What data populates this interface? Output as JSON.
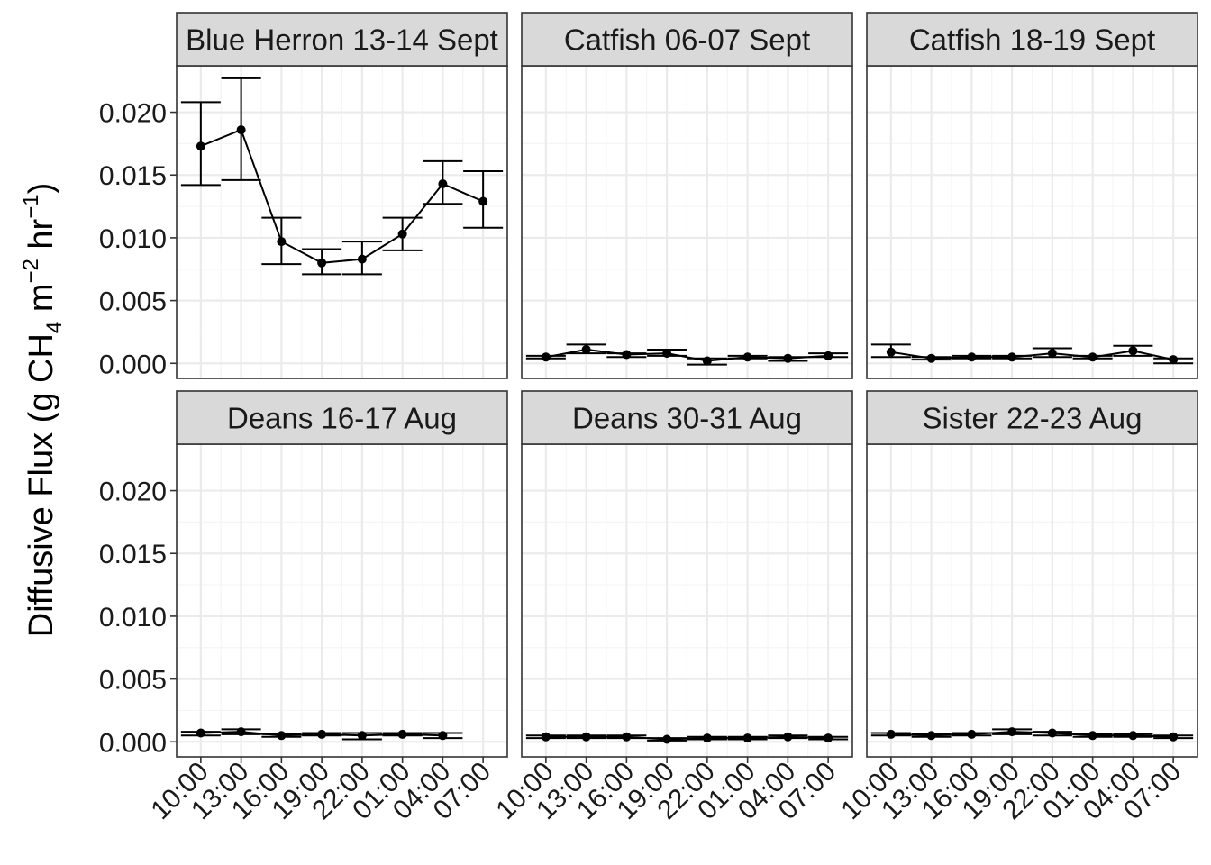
{
  "chart_data": {
    "type": "line",
    "facets": [
      "Blue Herron 13-14 Sept",
      "Catfish 06-07 Sept",
      "Catfish 18-19 Sept",
      "Deans 16-17 Aug",
      "Deans 30-31 Aug",
      "Sister 22-23 Aug"
    ],
    "ylabel": {
      "prefix": "Diffusive Flux (g CH",
      "sub": "4",
      "mid": " m",
      "sup1": "−2",
      "mid2": " hr",
      "sup2": "−1",
      "suffix": ")"
    },
    "xlabel": "",
    "categories": [
      "10:00",
      "13:00",
      "16:00",
      "19:00",
      "22:00",
      "01:00",
      "04:00",
      "07:00"
    ],
    "yticks": [
      "0.000",
      "0.005",
      "0.010",
      "0.015",
      "0.020"
    ],
    "ytick_values": [
      0,
      0.005,
      0.01,
      0.015,
      0.02
    ],
    "ylim": [
      -0.0012,
      0.0237
    ],
    "grid": true,
    "series": [
      {
        "panel": "Blue Herron 13-14 Sept",
        "values": [
          0.0173,
          0.0186,
          0.0097,
          0.008,
          0.0083,
          0.0103,
          0.0143,
          0.0129
        ],
        "lower": [
          0.0142,
          0.0146,
          0.0079,
          0.0071,
          0.0071,
          0.009,
          0.0127,
          0.0108
        ],
        "upper": [
          0.0208,
          0.0227,
          0.0116,
          0.0091,
          0.0097,
          0.0116,
          0.0161,
          0.0153
        ]
      },
      {
        "panel": "Catfish 06-07 Sept",
        "values": [
          0.0005,
          0.0011,
          0.0007,
          0.0008,
          0.0002,
          0.0005,
          0.0004,
          0.0006
        ],
        "lower": [
          0.0004,
          0.0008,
          0.0005,
          0.0006,
          -0.0001,
          0.0004,
          0.0002,
          0.0005
        ],
        "upper": [
          0.0006,
          0.0015,
          0.0008,
          0.0011,
          0.0004,
          0.0006,
          0.0005,
          0.0008
        ]
      },
      {
        "panel": "Catfish 18-19 Sept",
        "values": [
          0.0009,
          0.0004,
          0.0005,
          0.0005,
          0.0008,
          0.0005,
          0.001,
          0.0003
        ],
        "lower": [
          0.0005,
          0.0003,
          0.0004,
          0.0004,
          0.0005,
          0.0004,
          0.0006,
          0.0
        ],
        "upper": [
          0.0015,
          0.0005,
          0.0006,
          0.0006,
          0.0012,
          0.0006,
          0.0014,
          0.0004
        ]
      },
      {
        "panel": "Deans 16-17 Aug",
        "values": [
          0.0007,
          0.0008,
          0.0005,
          0.0006,
          0.0005,
          0.0006,
          0.0005,
          null
        ],
        "lower": [
          0.0005,
          0.0006,
          0.0004,
          0.0005,
          0.0002,
          0.0005,
          0.0003,
          null
        ],
        "upper": [
          0.0008,
          0.001,
          0.0006,
          0.0007,
          0.0007,
          0.0007,
          0.0007,
          null
        ]
      },
      {
        "panel": "Deans 30-31 Aug",
        "values": [
          0.0004,
          0.0004,
          0.0004,
          0.0002,
          0.0003,
          0.0003,
          0.0004,
          0.0003
        ],
        "lower": [
          0.0003,
          0.0003,
          0.0003,
          0.0001,
          0.0002,
          0.0002,
          0.0003,
          0.0002
        ],
        "upper": [
          0.0005,
          0.0005,
          0.0005,
          0.0003,
          0.0004,
          0.0004,
          0.0005,
          0.0004
        ]
      },
      {
        "panel": "Sister 22-23 Aug",
        "values": [
          0.0006,
          0.0005,
          0.0006,
          0.0008,
          0.0007,
          0.0005,
          0.0005,
          0.0004
        ],
        "lower": [
          0.0005,
          0.0004,
          0.0005,
          0.0006,
          0.0005,
          0.0004,
          0.0004,
          0.0003
        ],
        "upper": [
          0.0007,
          0.0006,
          0.0007,
          0.001,
          0.0008,
          0.0006,
          0.0006,
          0.0005
        ]
      }
    ],
    "colors": {
      "strip_fill": "#d9d9d9",
      "panel_border": "#333333",
      "grid_major": "#ebebeb",
      "grid_minor": "#f5f5f5",
      "data": "#000000",
      "text": "#1a1a1a"
    }
  }
}
